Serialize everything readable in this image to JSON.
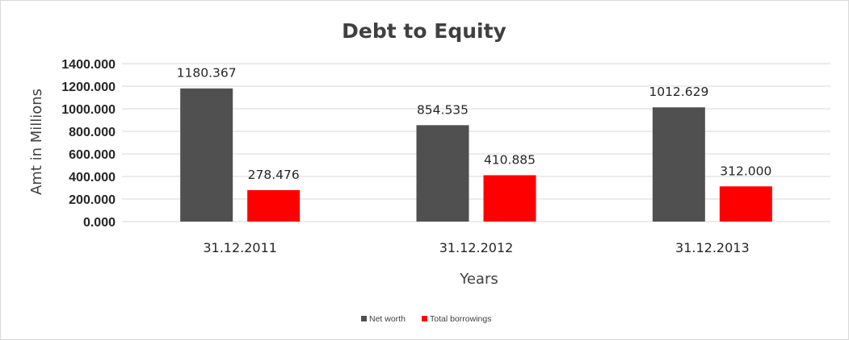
{
  "chart_data": {
    "type": "bar",
    "title": "Debt to Equity",
    "xlabel": "Years",
    "ylabel": "Amt in Millions",
    "categories": [
      "31.12.2011",
      "31.12.2012",
      "31.12.2013"
    ],
    "series": [
      {
        "name": "Net worth",
        "color": "#505050",
        "values": [
          1180.367,
          854.535,
          1012.629
        ],
        "labels": [
          "1180.367",
          "854.535",
          "1012.629"
        ]
      },
      {
        "name": "Total borrowings",
        "color": "#ff0000",
        "values": [
          278.476,
          410.885,
          312.0
        ],
        "labels": [
          "278.476",
          "410.885",
          "312.000"
        ]
      }
    ],
    "ylim": [
      0,
      1400
    ],
    "yticks": [
      0,
      200,
      400,
      600,
      800,
      1000,
      1200,
      1400
    ],
    "ytick_labels": [
      "0.000",
      "200.000",
      "400.000",
      "600.000",
      "800.000",
      "1000.000",
      "1200.000",
      "1400.000"
    ],
    "grid": true,
    "legend_position": "bottom"
  }
}
